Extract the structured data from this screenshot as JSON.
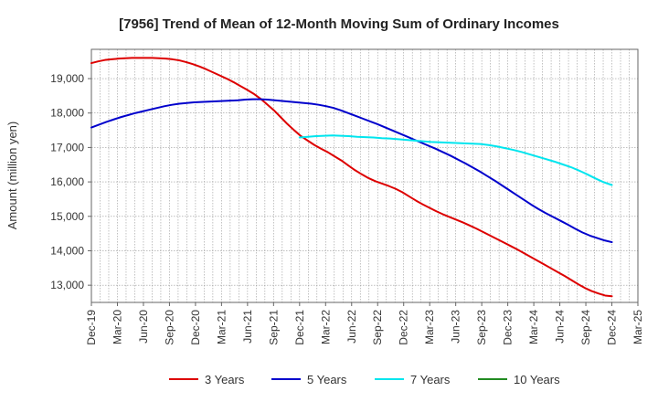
{
  "chart_data": {
    "type": "line",
    "title": "[7956]  Trend of Mean of 12-Month Moving Sum of Ordinary Incomes",
    "xlabel": "",
    "ylabel": "Amount (million yen)",
    "ylim": [
      12500,
      19850
    ],
    "y_ticks": [
      13000,
      14000,
      15000,
      16000,
      17000,
      18000,
      19000
    ],
    "y_tick_labels": [
      "13,000",
      "14,000",
      "15,000",
      "16,000",
      "17,000",
      "18,000",
      "19,000"
    ],
    "x_tick_labels": [
      "Dec-19",
      "Mar-20",
      "Jun-20",
      "Sep-20",
      "Dec-20",
      "Mar-21",
      "Jun-21",
      "Sep-21",
      "Dec-21",
      "Mar-22",
      "Jun-22",
      "Sep-22",
      "Dec-22",
      "Mar-23",
      "Jun-23",
      "Sep-23",
      "Dec-23",
      "Mar-24",
      "Jun-24",
      "Sep-24",
      "Dec-24",
      "Mar-25"
    ],
    "x_month_count": 64,
    "grid": true,
    "legend_position": "bottom",
    "series": [
      {
        "name": "3 Years",
        "color": "#dd0000",
        "start_month": 0,
        "values": [
          19450,
          19500,
          19540,
          19560,
          19580,
          19590,
          19600,
          19600,
          19600,
          19600,
          19590,
          19580,
          19560,
          19530,
          19480,
          19420,
          19350,
          19270,
          19180,
          19090,
          19000,
          18900,
          18790,
          18680,
          18560,
          18420,
          18250,
          18080,
          17880,
          17680,
          17500,
          17330,
          17200,
          17070,
          16960,
          16860,
          16740,
          16620,
          16480,
          16340,
          16220,
          16110,
          16020,
          15950,
          15880,
          15800,
          15700,
          15580,
          15460,
          15350,
          15250,
          15150,
          15060,
          14980,
          14900,
          14820,
          14730,
          14640,
          14540,
          14440,
          14340,
          14240,
          14140,
          14040,
          13930,
          13820,
          13710,
          13600,
          13490,
          13380,
          13270,
          13150,
          13030,
          12920,
          12830,
          12760,
          12700,
          12680
        ]
      },
      {
        "name": "5 Years",
        "color": "#0000cc",
        "start_month": 0,
        "values": [
          17580,
          17660,
          17740,
          17810,
          17880,
          17940,
          18000,
          18050,
          18100,
          18150,
          18200,
          18240,
          18270,
          18290,
          18310,
          18320,
          18330,
          18340,
          18350,
          18360,
          18370,
          18390,
          18400,
          18400,
          18390,
          18370,
          18350,
          18330,
          18310,
          18290,
          18270,
          18240,
          18200,
          18150,
          18080,
          18000,
          17920,
          17840,
          17760,
          17680,
          17590,
          17500,
          17410,
          17320,
          17230,
          17140,
          17050,
          16960,
          16860,
          16760,
          16650,
          16540,
          16420,
          16300,
          16170,
          16040,
          15900,
          15760,
          15620,
          15480,
          15340,
          15210,
          15090,
          14980,
          14870,
          14760,
          14640,
          14530,
          14440,
          14370,
          14300,
          14250
        ]
      },
      {
        "name": "7 Years",
        "color": "#00e5ee",
        "start_month": 24,
        "values": [
          17290,
          17310,
          17330,
          17340,
          17350,
          17340,
          17330,
          17310,
          17300,
          17290,
          17270,
          17260,
          17240,
          17220,
          17200,
          17180,
          17160,
          17150,
          17140,
          17130,
          17120,
          17110,
          17100,
          17070,
          17030,
          16980,
          16930,
          16870,
          16800,
          16730,
          16660,
          16590,
          16510,
          16430,
          16330,
          16220,
          16100,
          15990,
          15910
        ]
      },
      {
        "name": "10 Years",
        "color": "#228b22",
        "start_month": 0,
        "values": []
      }
    ]
  }
}
